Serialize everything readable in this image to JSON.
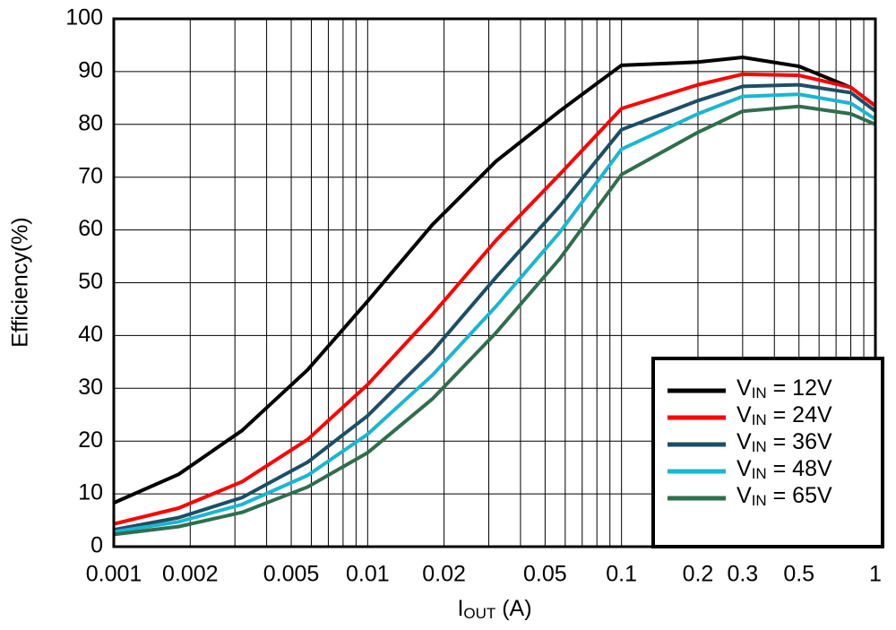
{
  "chart_data": {
    "type": "line",
    "x_label": "IOUT (A)",
    "y_label": "Efficiency(%)",
    "x": [
      0.001,
      0.0018,
      0.0032,
      0.0058,
      0.01,
      0.018,
      0.032,
      0.057,
      0.1,
      0.2,
      0.3,
      0.5,
      0.8,
      1
    ],
    "series": [
      {
        "name": "VIN = 12V",
        "color": "#000000",
        "values": [
          8.3,
          13.7,
          22,
          33.5,
          46.5,
          61,
          73,
          82.5,
          91.2,
          91.8,
          92.7,
          91,
          87,
          83.5
        ]
      },
      {
        "name": "VIN = 24V",
        "color": "#ff0000",
        "values": [
          4.3,
          7.3,
          12.3,
          20.3,
          30.7,
          44,
          58,
          70.5,
          83,
          87.5,
          89.5,
          89.3,
          87,
          83.5
        ]
      },
      {
        "name": "VIN = 36V",
        "color": "#1b4f66",
        "values": [
          3.2,
          5.5,
          9.3,
          16,
          24.8,
          37,
          51,
          64.5,
          79,
          84.5,
          87.2,
          87.5,
          86,
          82.5
        ]
      },
      {
        "name": "VIN = 48V",
        "color": "#1cb6cf",
        "values": [
          2.8,
          4.7,
          8,
          13.5,
          21.3,
          32.5,
          45.5,
          59.5,
          75.3,
          82,
          85.3,
          85.7,
          84,
          81
        ]
      },
      {
        "name": "VIN = 65V",
        "color": "#2f6e4f",
        "values": [
          2.3,
          3.8,
          6.5,
          11.3,
          17.8,
          28,
          40.5,
          54.5,
          70.5,
          78.5,
          82.5,
          83.4,
          82,
          80
        ]
      }
    ],
    "x_log_scale": true,
    "xlim": [
      0.001,
      1
    ],
    "xticks": [
      0.001,
      0.002,
      0.005,
      0.01,
      0.02,
      0.05,
      0.1,
      0.2,
      0.3,
      0.5,
      1
    ],
    "x_minor_gridlines": [
      0.003,
      0.004,
      0.006,
      0.007,
      0.008,
      0.009,
      0.03,
      0.04,
      0.06,
      0.07,
      0.08,
      0.09,
      0.4,
      0.6,
      0.7,
      0.8,
      0.9
    ],
    "ylim": [
      0,
      100
    ],
    "yticks": [
      0,
      10,
      20,
      30,
      40,
      50,
      60,
      70,
      80,
      90,
      100
    ],
    "grid": true,
    "legend_position": "lower right"
  }
}
